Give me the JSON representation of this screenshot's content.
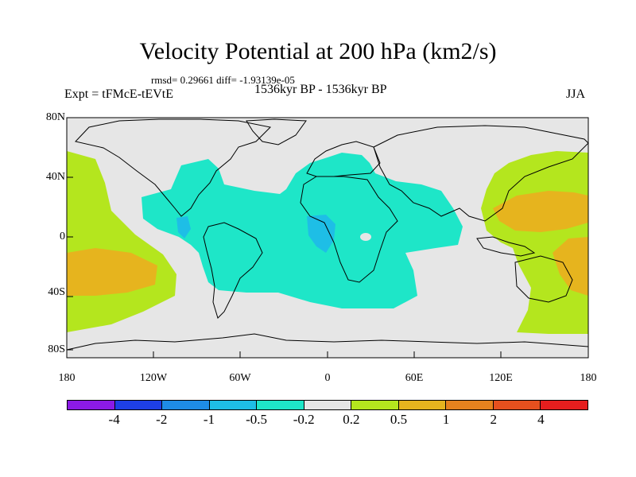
{
  "title": "Velocity Potential at 200 hPa (km2/s)",
  "stats": "rmsd= 0.29661 diff= -1.93139e-05",
  "experiment": "Expt = tFMcE-tEVtE",
  "period": "1536kyr BP - 1536kyr BP",
  "season": "JJA",
  "lat_ticks": [
    "80N",
    "40N",
    "0",
    "40S",
    "80S"
  ],
  "lon_ticks": [
    "180",
    "120W",
    "60W",
    "0",
    "60E",
    "120E",
    "180"
  ],
  "colorbar": {
    "colors": [
      "#8b1ae6",
      "#1e3fe6",
      "#1e8ce6",
      "#1ebee6",
      "#1ee6c8",
      "#e6e6e6",
      "#b4e61e",
      "#e6b41e",
      "#e6821e",
      "#e6501e",
      "#e61e1e"
    ],
    "labels": [
      "-4",
      "-2",
      "-1",
      "-0.5",
      "-0.2",
      "0.2",
      "0.5",
      "1",
      "2",
      "4"
    ]
  },
  "field_colors": {
    "background": "#e6e6e6",
    "negative_light": "#1ee6c8",
    "negative_mid": "#1ebee6",
    "positive_light": "#b4e61e",
    "positive_mid": "#e6b41e"
  }
}
